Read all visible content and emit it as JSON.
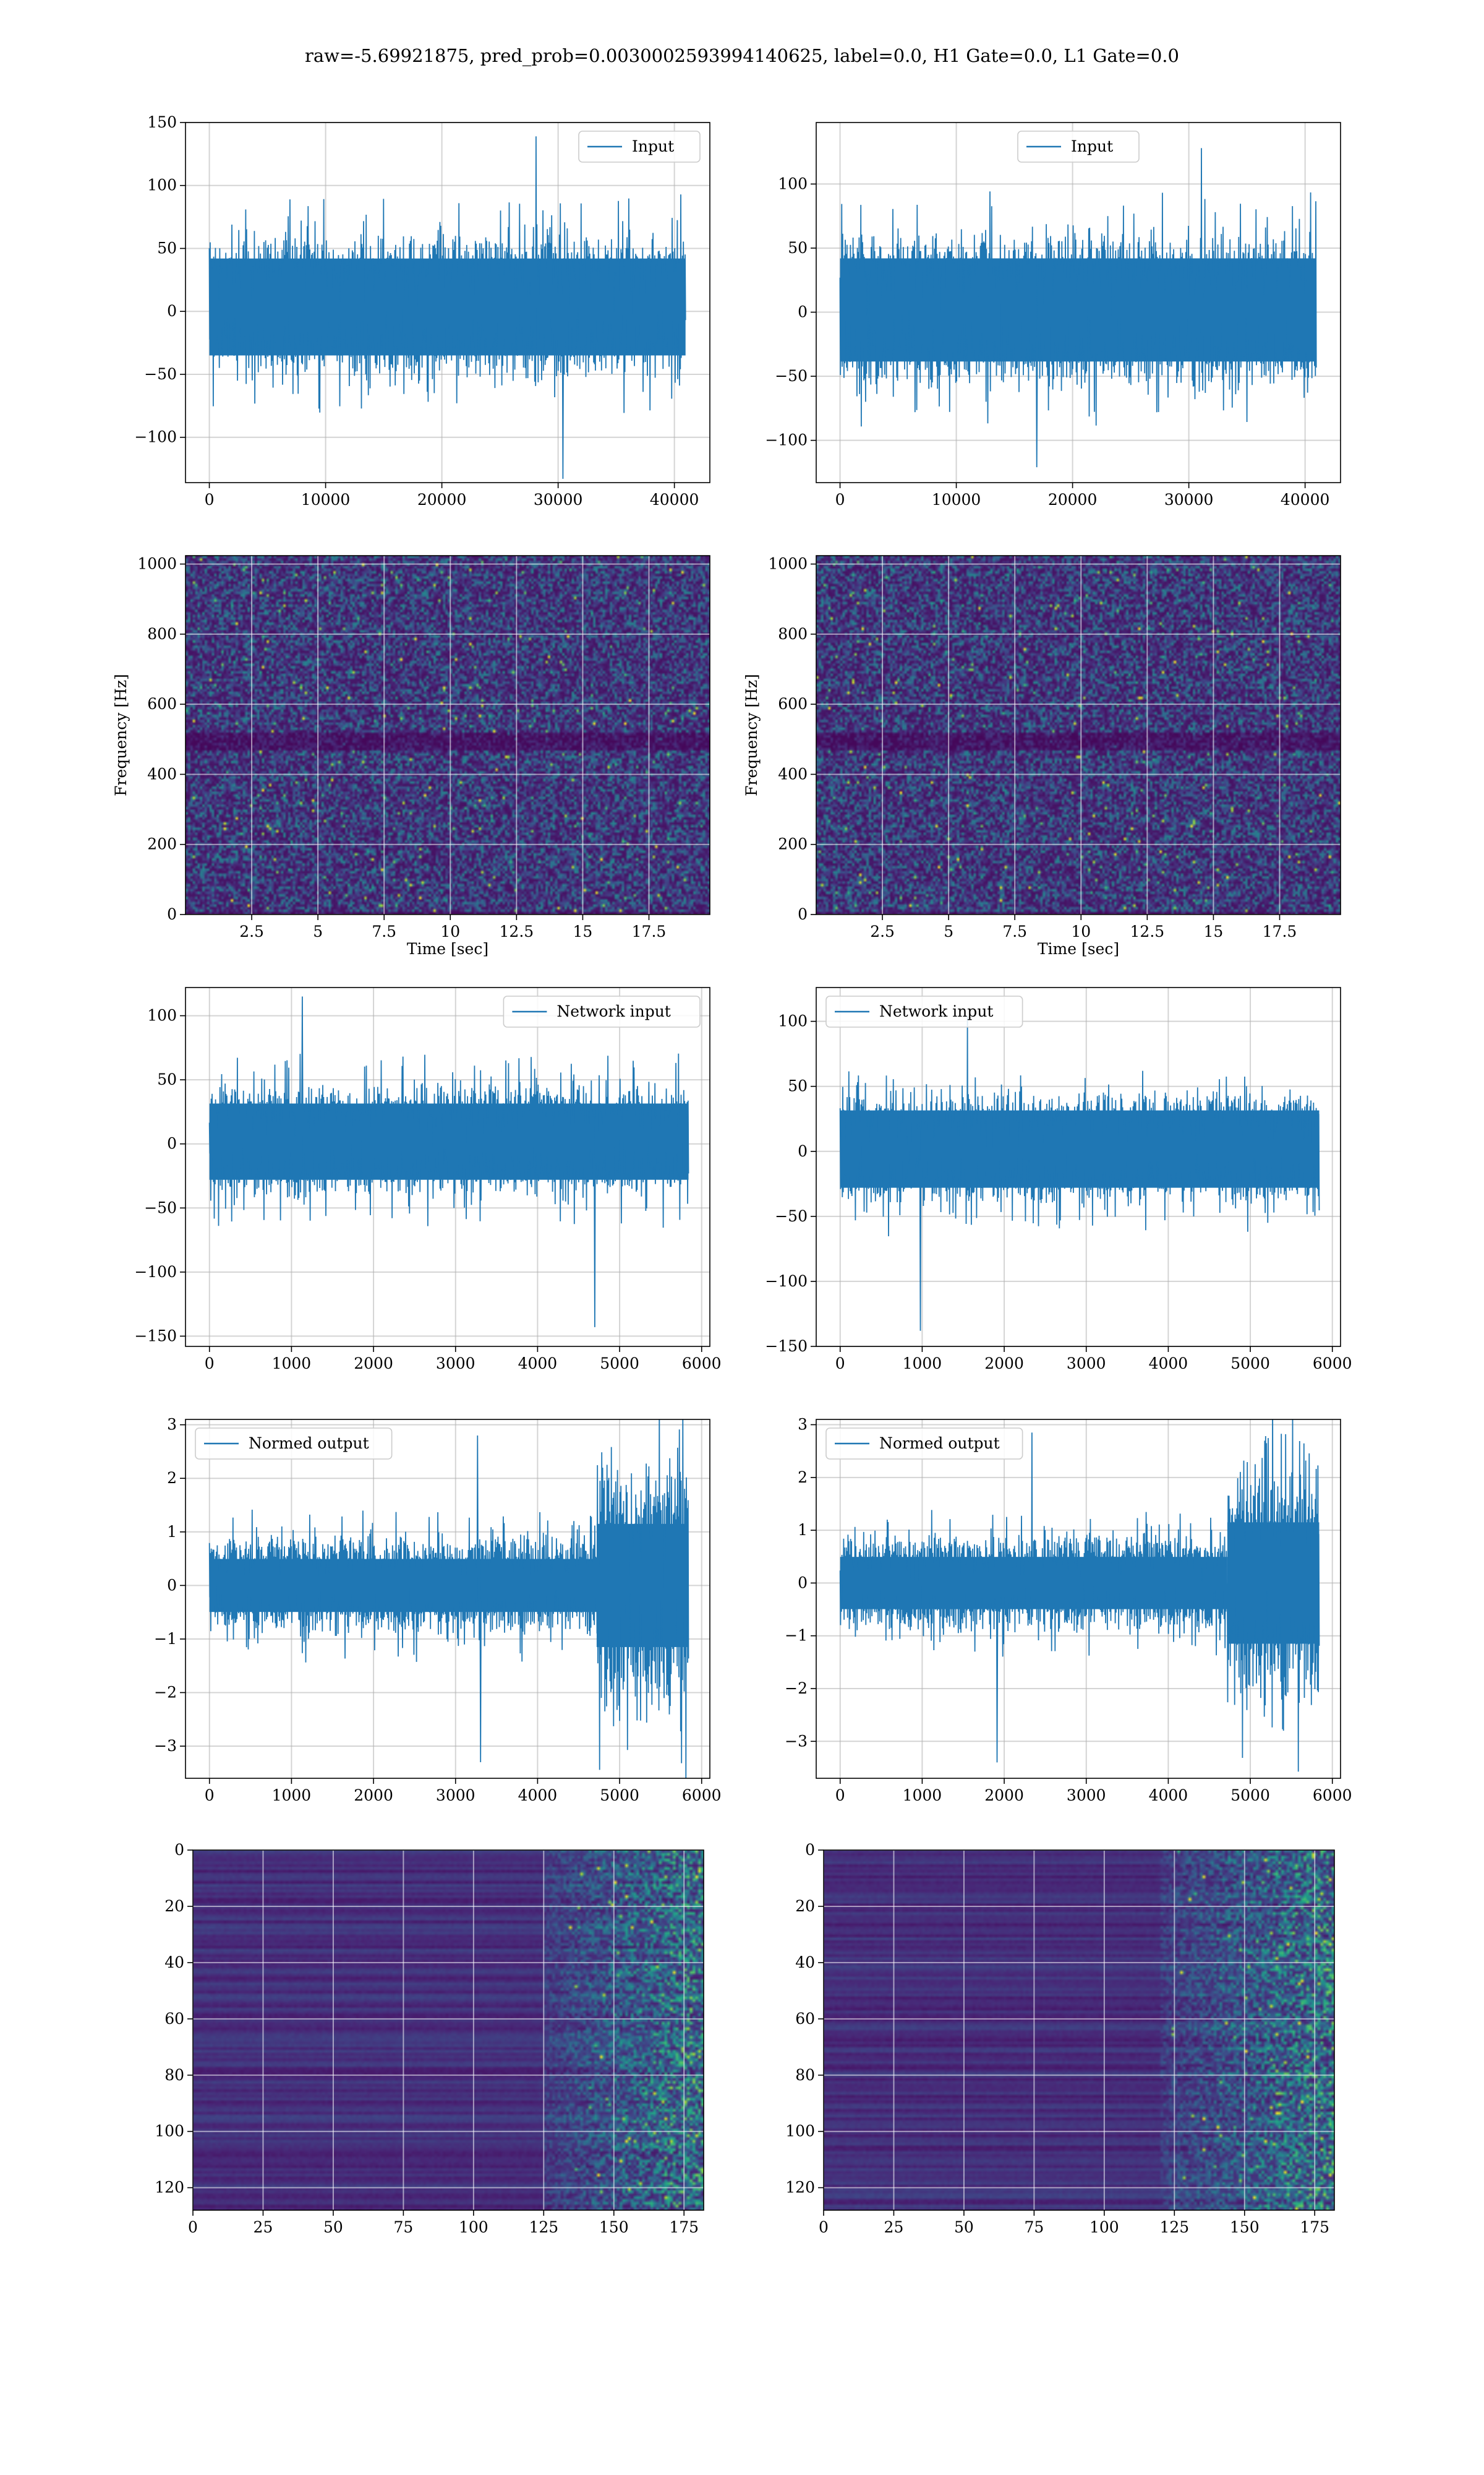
{
  "suptitle": "raw=-5.69921875, pred_prob=0.0030002593994140625, label=0.0, H1 Gate=0.0, L1 Gate=0.0",
  "colors": {
    "line": "#1f77b4",
    "viridis": [
      "#440154",
      "#482777",
      "#3e4a89",
      "#31688e",
      "#26828e",
      "#1f9e89",
      "#35b779",
      "#6ece58",
      "#b5de2b",
      "#fde725"
    ],
    "grid_line": "#b0b0b0",
    "grid_on_image": "#ffffff"
  },
  "chart_data": [
    {
      "id": "r1c1",
      "type": "line",
      "title": "",
      "xlabel": "",
      "ylabel": "",
      "legend": {
        "label": "Input",
        "placement": "upper-right"
      },
      "xlim": [
        -2050,
        43050
      ],
      "ylim": [
        -136,
        150
      ],
      "xticks": [
        0,
        10000,
        20000,
        30000,
        40000
      ],
      "yticks": [
        -100,
        -50,
        0,
        50,
        100,
        150
      ],
      "grid": true,
      "series": [
        {
          "name": "Input",
          "x_range": [
            0,
            40960
          ],
          "envelope": {
            "typical": [
              -50,
              60
            ],
            "max": 139,
            "min": -133
          }
        }
      ]
    },
    {
      "id": "r1c2",
      "type": "line",
      "title": "",
      "xlabel": "",
      "ylabel": "",
      "legend": {
        "label": "Input",
        "placement": "upper-center"
      },
      "xlim": [
        -2050,
        43050
      ],
      "ylim": [
        -133,
        148
      ],
      "xticks": [
        0,
        10000,
        20000,
        30000,
        40000
      ],
      "yticks": [
        -100,
        -50,
        0,
        50,
        100
      ],
      "grid": true,
      "series": [
        {
          "name": "Input",
          "x_range": [
            0,
            40960
          ],
          "envelope": {
            "typical": [
              -55,
              60
            ],
            "max": 128,
            "min": -121
          }
        }
      ]
    },
    {
      "id": "r2c1",
      "type": "heatmap",
      "title": "",
      "xlabel": "Time [sec]",
      "ylabel": "Frequency [Hz]",
      "xlim": [
        0,
        19.8
      ],
      "ylim": [
        0,
        1024
      ],
      "xticks": [
        2.5,
        5.0,
        7.5,
        10.0,
        12.5,
        15.0,
        17.5
      ],
      "yticks": [
        0,
        200,
        400,
        600,
        800,
        1000
      ],
      "grid": true,
      "colormap": "viridis",
      "feature": {
        "dark_band_hz": [
          470,
          520
        ]
      }
    },
    {
      "id": "r2c2",
      "type": "heatmap",
      "title": "",
      "xlabel": "Time [sec]",
      "ylabel": "Frequency [Hz]",
      "xlim": [
        0,
        19.8
      ],
      "ylim": [
        0,
        1024
      ],
      "xticks": [
        2.5,
        5.0,
        7.5,
        10.0,
        12.5,
        15.0,
        17.5
      ],
      "yticks": [
        0,
        200,
        400,
        600,
        800,
        1000
      ],
      "grid": true,
      "colormap": "viridis",
      "feature": {
        "dark_band_hz": [
          470,
          520
        ]
      }
    },
    {
      "id": "r3c1",
      "type": "line",
      "title": "",
      "xlabel": "",
      "ylabel": "",
      "legend": {
        "label": "Network input",
        "placement": "upper-right"
      },
      "xlim": [
        -292,
        6100
      ],
      "ylim": [
        -158,
        122
      ],
      "xticks": [
        0,
        1000,
        2000,
        3000,
        4000,
        5000,
        6000
      ],
      "yticks": [
        -150,
        -100,
        -50,
        0,
        50,
        100
      ],
      "grid": true,
      "series": [
        {
          "name": "Network input",
          "x_range": [
            0,
            5840
          ],
          "envelope": {
            "typical": [
              -40,
              45
            ],
            "max": 115,
            "min": -143
          }
        }
      ]
    },
    {
      "id": "r3c2",
      "type": "line",
      "title": "",
      "xlabel": "",
      "ylabel": "",
      "legend": {
        "label": "Network input",
        "placement": "upper-left"
      },
      "xlim": [
        -292,
        6100
      ],
      "ylim": [
        -150,
        126
      ],
      "xticks": [
        0,
        1000,
        2000,
        3000,
        4000,
        5000,
        6000
      ],
      "yticks": [
        -150,
        -100,
        -50,
        0,
        50,
        100
      ],
      "grid": true,
      "series": [
        {
          "name": "Network input",
          "x_range": [
            0,
            5840
          ],
          "envelope": {
            "typical": [
              -40,
              45
            ],
            "max": 104,
            "min": -138
          }
        }
      ]
    },
    {
      "id": "r4c1",
      "type": "line",
      "title": "",
      "xlabel": "",
      "ylabel": "",
      "legend": {
        "label": "Normed output",
        "placement": "upper-left"
      },
      "xlim": [
        -292,
        6100
      ],
      "ylim": [
        -3.6,
        3.1
      ],
      "xticks": [
        0,
        1000,
        2000,
        3000,
        4000,
        5000,
        6000
      ],
      "yticks": [
        -3,
        -2,
        -1,
        0,
        1,
        2,
        3
      ],
      "grid": true,
      "series": [
        {
          "name": "Normed output",
          "x_range": [
            0,
            5840
          ],
          "envelope": {
            "typical_before": [
              -0.9,
              0.9
            ],
            "typical_after": [
              -2.3,
              2.3
            ],
            "change_x": 4720,
            "max": 2.8,
            "min": -3.3
          }
        }
      ]
    },
    {
      "id": "r4c2",
      "type": "line",
      "title": "",
      "xlabel": "",
      "ylabel": "",
      "legend": {
        "label": "Normed output",
        "placement": "upper-left"
      },
      "xlim": [
        -292,
        6100
      ],
      "ylim": [
        -3.7,
        3.1
      ],
      "xticks": [
        0,
        1000,
        2000,
        3000,
        4000,
        5000,
        6000
      ],
      "yticks": [
        -3,
        -2,
        -1,
        0,
        1,
        2,
        3
      ],
      "grid": true,
      "series": [
        {
          "name": "Normed output",
          "x_range": [
            0,
            5840
          ],
          "envelope": {
            "typical_before": [
              -0.9,
              0.9
            ],
            "typical_after": [
              -2.3,
              2.3
            ],
            "change_x": 4720,
            "max": 2.85,
            "min": -3.4
          }
        }
      ]
    },
    {
      "id": "r5c1",
      "type": "heatmap",
      "title": "",
      "xlabel": "",
      "ylabel": "",
      "xlim": [
        0,
        182
      ],
      "ylim": [
        128,
        0
      ],
      "xticks": [
        0,
        25,
        50,
        75,
        100,
        125,
        150,
        175
      ],
      "yticks": [
        0,
        20,
        40,
        60,
        80,
        100,
        120
      ],
      "grid": true,
      "colormap": "viridis",
      "feature": {
        "active_from_x": 125
      }
    },
    {
      "id": "r5c2",
      "type": "heatmap",
      "title": "",
      "xlabel": "",
      "ylabel": "",
      "xlim": [
        0,
        182
      ],
      "ylim": [
        128,
        0
      ],
      "xticks": [
        0,
        25,
        50,
        75,
        100,
        125,
        150,
        175
      ],
      "yticks": [
        0,
        20,
        40,
        60,
        80,
        100,
        120
      ],
      "grid": true,
      "colormap": "viridis",
      "feature": {
        "active_from_x": 120
      }
    }
  ]
}
